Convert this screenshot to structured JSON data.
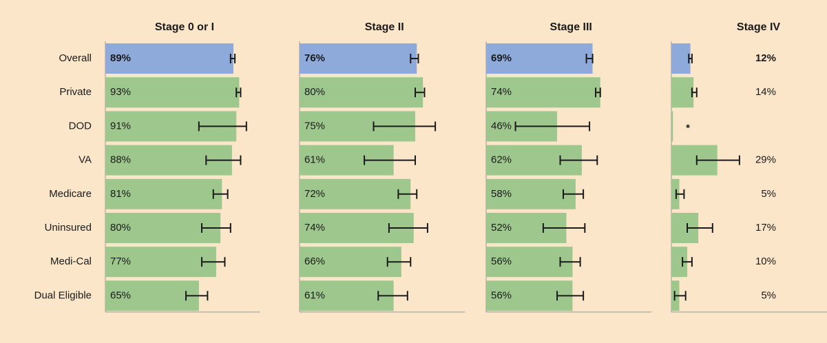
{
  "chart_data": {
    "type": "bar",
    "orientation": "horizontal",
    "categories": [
      "Overall",
      "Private",
      "DOD",
      "VA",
      "Medicare",
      "Uninsured",
      "Medi-Cal",
      "Dual Eligible"
    ],
    "color": "#9dc78c",
    "highlight": "Overall",
    "highlight_color": "#8eaadb",
    "error_color": "#1a1a1a",
    "xlim": [
      0,
      100
    ],
    "series": [
      {
        "name": "Stage 0 or I",
        "values": [
          89,
          93,
          91,
          88,
          81,
          80,
          77,
          65
        ],
        "value_labels": [
          "89%",
          "93%",
          "91%",
          "88%",
          "81%",
          "80%",
          "77%",
          "65%"
        ],
        "ci_low": [
          87,
          91,
          65,
          70,
          75,
          67,
          67,
          56
        ],
        "ci_high": [
          90,
          94,
          98,
          94,
          85,
          87,
          83,
          71
        ]
      },
      {
        "name": "Stage II",
        "values": [
          76,
          80,
          75,
          61,
          72,
          74,
          66,
          61
        ],
        "value_labels": [
          "76%",
          "80%",
          "75%",
          "61%",
          "72%",
          "74%",
          "66%",
          "61%"
        ],
        "ci_low": [
          72,
          75,
          48,
          42,
          64,
          58,
          57,
          51
        ],
        "ci_high": [
          77,
          81,
          88,
          75,
          76,
          83,
          72,
          70
        ]
      },
      {
        "name": "Stage III",
        "values": [
          69,
          74,
          46,
          62,
          58,
          52,
          56,
          56
        ],
        "value_labels": [
          "69%",
          "74%",
          "46%",
          "62%",
          "58%",
          "52%",
          "56%",
          "56%"
        ],
        "ci_low": [
          65,
          71,
          19,
          48,
          50,
          37,
          48,
          46
        ],
        "ci_high": [
          69,
          74,
          67,
          72,
          63,
          64,
          61,
          63
        ]
      },
      {
        "name": "Stage IV",
        "values": [
          12,
          14,
          1,
          29,
          5,
          17,
          10,
          5
        ],
        "value_labels": [
          "12%",
          "14%",
          "*",
          "29%",
          "5%",
          "17%",
          "10%",
          "5%"
        ],
        "ci_low": [
          11,
          13,
          null,
          16,
          3,
          10,
          7,
          2
        ],
        "ci_high": [
          13,
          16,
          null,
          43,
          8,
          26,
          13,
          9
        ]
      }
    ]
  }
}
